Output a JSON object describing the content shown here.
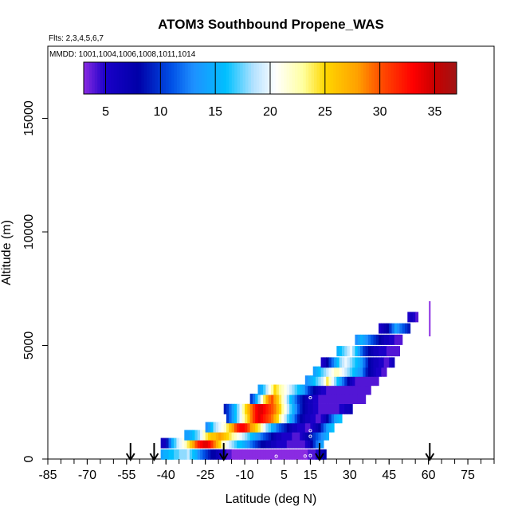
{
  "chart_data": {
    "type": "heatmap",
    "title": "ATOM3 Southbound Propene_WAS",
    "flights_label": "Flts: 2,3,4,5,6,7",
    "dates_label": "MMDD: 1001,1004,1006,1008,1011,1014",
    "xlabel": "Latitude (deg N)",
    "ylabel": "Altitude (m)",
    "xlim": [
      -85,
      85
    ],
    "ylim": [
      0,
      17500
    ],
    "x_ticks": [
      -85,
      -70,
      -55,
      -40,
      -25,
      -10,
      5,
      15,
      30,
      45,
      60,
      75
    ],
    "x_tick_labels": [
      "-85",
      "-70",
      "-55",
      "-40",
      "-25",
      "-10",
      "5",
      "15",
      "30",
      "45",
      "60",
      "75"
    ],
    "x_minor_step": 5,
    "y_ticks": [
      0,
      5000,
      10000,
      15000
    ],
    "y_tick_labels": [
      "0",
      "5000",
      "10000",
      "15000"
    ],
    "colorbar": {
      "min": 3,
      "max": 37,
      "ticks": [
        5,
        10,
        15,
        20,
        25,
        30,
        35
      ],
      "tick_labels": [
        "5",
        "10",
        "15",
        "20",
        "25",
        "30",
        "35"
      ],
      "stops": [
        {
          "v": 3,
          "c": "#8a2be2"
        },
        {
          "v": 5,
          "c": "#1a00c8"
        },
        {
          "v": 8,
          "c": "#0000a8"
        },
        {
          "v": 11,
          "c": "#0050e6"
        },
        {
          "v": 13,
          "c": "#1e90ff"
        },
        {
          "v": 16,
          "c": "#00c0ff"
        },
        {
          "v": 18.5,
          "c": "#b4e2ff"
        },
        {
          "v": 20.5,
          "c": "#ffffff"
        },
        {
          "v": 23,
          "c": "#ffffa0"
        },
        {
          "v": 25,
          "c": "#ffd700"
        },
        {
          "v": 28,
          "c": "#ffa000"
        },
        {
          "v": 30,
          "c": "#ff5000"
        },
        {
          "v": 33,
          "c": "#ff0000"
        },
        {
          "v": 35,
          "c": "#c80000"
        },
        {
          "v": 37,
          "c": "#a01414"
        }
      ]
    },
    "bands": [
      {
        "alt": 200,
        "lat_start": -42,
        "lat_end": 21,
        "values": [
          14,
          15,
          15,
          16,
          16,
          17,
          17,
          18,
          18,
          18,
          19,
          17,
          16,
          15,
          13,
          12,
          11,
          10,
          9,
          8,
          8,
          7,
          6,
          5,
          5,
          4,
          4,
          3,
          3,
          3,
          3,
          3,
          3,
          3,
          3,
          3,
          3,
          3,
          3,
          3,
          3,
          3,
          3,
          3,
          3,
          3,
          3,
          3,
          3,
          3,
          3,
          3,
          3,
          3,
          3,
          3,
          4,
          4,
          4,
          5,
          6,
          7,
          8
        ]
      },
      {
        "alt": 700,
        "lat_start": -42,
        "lat_end": 20,
        "values": [
          6,
          6,
          9,
          12,
          15,
          17,
          19,
          20,
          21,
          22,
          24,
          26,
          28,
          30,
          32,
          33,
          34,
          34,
          33,
          31,
          29,
          27,
          25,
          23,
          22,
          20,
          19,
          18,
          17,
          16,
          16,
          15,
          14,
          13,
          12,
          11,
          10,
          9,
          8,
          8,
          7,
          7,
          6,
          6,
          5,
          5,
          5,
          5,
          4,
          4,
          4,
          4,
          4,
          4,
          4,
          5,
          6,
          8,
          10,
          12,
          13,
          14
        ]
      },
      {
        "alt": 1050,
        "lat_start": -33,
        "lat_end": 22,
        "values": [
          14,
          14,
          15,
          16,
          17,
          18,
          20,
          22,
          24,
          25,
          26,
          26,
          27,
          28,
          27,
          26,
          25,
          24,
          23,
          22,
          21,
          20,
          19,
          18,
          17,
          16,
          15,
          14,
          13,
          12,
          11,
          10,
          9,
          8,
          7,
          6,
          6,
          5,
          5,
          5,
          5,
          4,
          4,
          4,
          5,
          6,
          7,
          8,
          9,
          10,
          11,
          12,
          13,
          14,
          15
        ]
      },
      {
        "alt": 1400,
        "lat_start": -25,
        "lat_end": 24,
        "values": [
          13,
          14,
          16,
          18,
          19,
          20,
          21,
          22,
          24,
          26,
          28,
          30,
          32,
          33,
          33,
          32,
          30,
          28,
          27,
          25,
          24,
          22,
          20,
          18,
          17,
          15,
          14,
          12,
          11,
          10,
          9,
          8,
          7,
          6,
          6,
          5,
          5,
          5,
          4,
          4,
          5,
          6,
          7,
          8,
          10,
          12,
          14,
          15,
          16
        ]
      },
      {
        "alt": 1800,
        "lat_start": -17,
        "lat_end": 27,
        "values": [
          10,
          12,
          14,
          16,
          18,
          20,
          22,
          24,
          26,
          29,
          31,
          33,
          34,
          33,
          32,
          31,
          30,
          29,
          27,
          25,
          23,
          21,
          19,
          17,
          15,
          13,
          11,
          9,
          8,
          7,
          6,
          6,
          5,
          5,
          4,
          4,
          5,
          6,
          8,
          10,
          12,
          14,
          15,
          16
        ]
      },
      {
        "alt": 2200,
        "lat_start": -18,
        "lat_end": 31,
        "values": [
          9,
          10,
          12,
          14,
          16,
          18,
          20,
          23,
          25,
          27,
          29,
          31,
          33,
          34,
          34,
          33,
          32,
          31,
          30,
          29,
          27,
          25,
          23,
          21,
          19,
          17,
          15,
          13,
          11,
          9,
          8,
          7,
          6,
          6,
          5,
          5,
          4,
          4,
          4,
          4,
          4,
          4,
          4,
          4,
          5,
          5,
          6,
          6,
          7
        ]
      },
      {
        "alt": 2650,
        "lat_start": -8,
        "lat_end": 36,
        "values": [
          10,
          12,
          15,
          18,
          21,
          24,
          27,
          29,
          30,
          28,
          26,
          24,
          22,
          20,
          18,
          16,
          14,
          12,
          10,
          9,
          8,
          7,
          6,
          6,
          5,
          5,
          4,
          4,
          4,
          4,
          4,
          4,
          4,
          4,
          4,
          4,
          4,
          4,
          4,
          4,
          4,
          4,
          4,
          4
        ]
      },
      {
        "alt": 3050,
        "lat_start": -5,
        "lat_end": 38,
        "values": [
          14,
          15,
          17,
          19,
          21,
          23,
          25,
          24,
          23,
          22,
          21,
          20,
          19,
          18,
          17,
          16,
          15,
          14,
          12,
          10,
          9,
          8,
          7,
          6,
          5,
          5,
          4,
          4,
          4,
          4,
          4,
          4,
          4,
          4,
          4,
          4,
          4,
          4,
          4,
          4,
          4,
          4,
          4
        ]
      },
      {
        "alt": 3450,
        "lat_start": 13,
        "lat_end": 41,
        "values": [
          13,
          14,
          15,
          16,
          17,
          18,
          19,
          21,
          24,
          22,
          20,
          18,
          16,
          14,
          12,
          10,
          8,
          6,
          5,
          4,
          4,
          4,
          4,
          4,
          4,
          4,
          4,
          4
        ]
      },
      {
        "alt": 3850,
        "lat_start": 16,
        "lat_end": 44,
        "values": [
          14,
          15,
          16,
          17,
          18,
          19,
          20,
          21,
          22,
          22,
          21,
          20,
          19,
          18,
          17,
          16,
          15,
          14,
          13,
          11,
          9,
          8,
          7,
          6,
          5,
          5,
          4,
          4
        ]
      },
      {
        "alt": 4250,
        "lat_start": 19,
        "lat_end": 47,
        "values": [
          5,
          6,
          8,
          10,
          12,
          14,
          16,
          18,
          19,
          20,
          19,
          18,
          17,
          16,
          15,
          14,
          12,
          10,
          8,
          7,
          6,
          6,
          5,
          5,
          4,
          4,
          5,
          6
        ]
      },
      {
        "alt": 4750,
        "lat_start": 25,
        "lat_end": 49,
        "values": [
          15,
          16,
          17,
          18,
          19,
          20,
          18,
          16,
          14,
          12,
          10,
          9,
          8,
          7,
          6,
          6,
          5,
          5,
          5,
          4,
          4,
          4,
          4,
          4
        ]
      },
      {
        "alt": 5250,
        "lat_start": 32,
        "lat_end": 50,
        "values": [
          13,
          14,
          15,
          14,
          13,
          12,
          11,
          10,
          9,
          8,
          7,
          6,
          6,
          5,
          5,
          4,
          4,
          4
        ]
      },
      {
        "alt": 5750,
        "lat_start": 41,
        "lat_end": 53,
        "values": [
          5,
          6,
          7,
          8,
          10,
          12,
          14,
          13,
          12,
          11,
          10,
          9
        ]
      },
      {
        "alt": 6250,
        "lat_start": 52,
        "lat_end": 56,
        "values": [
          5,
          6,
          5,
          4
        ]
      }
    ],
    "spike": {
      "lat": 60.5,
      "alt_min": 5400,
      "alt_max": 6950,
      "value": 3
    },
    "open_circles": [
      {
        "lat": -18,
        "alt": 1600
      },
      {
        "lat": -18,
        "alt": 1850
      },
      {
        "lat": -18,
        "alt": 700
      },
      {
        "lat": 2,
        "alt": 120
      },
      {
        "lat": 13,
        "alt": 130
      },
      {
        "lat": 15,
        "alt": 1000
      },
      {
        "lat": 15,
        "alt": 1250
      },
      {
        "lat": 15,
        "alt": 2700
      },
      {
        "lat": 15,
        "alt": 150
      }
    ],
    "down_arrows": [
      -53.5,
      -44.5,
      -18,
      18.5,
      60.5
    ]
  }
}
